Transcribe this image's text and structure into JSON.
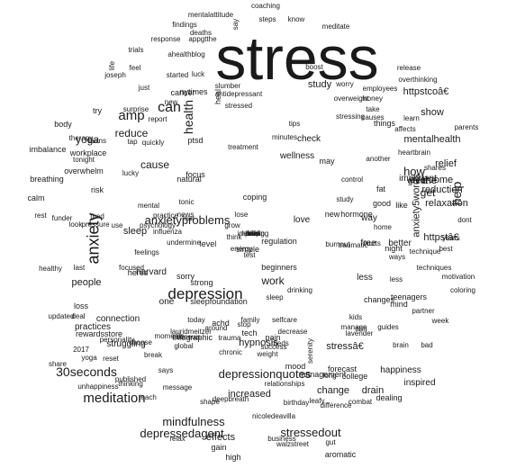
{
  "words": [
    "stress",
    "depression",
    "anxiety",
    "amp",
    "can",
    "meditation",
    "health",
    "help",
    "30seconds",
    "anxietyproblems",
    "mindfulness",
    "depressionquotes",
    "depressedagent",
    "stressedout",
    "how",
    "cause",
    "the",
    "get",
    "yoga",
    "reduce",
    "work",
    "sleep",
    "people",
    "mentalhealth",
    "relief",
    "anxiety5words",
    "effects",
    "increased",
    "change",
    "drain",
    "hypnosis",
    "stressâ€",
    "httpstcoâ€",
    "httpstâ€",
    "overcome",
    "reduction",
    "relaxation",
    "meditate",
    "coaching",
    "mentalattitude",
    "know",
    "say",
    "steps",
    "findings",
    "deaths",
    "response",
    "appgtthe",
    "trials",
    "ahealthblog",
    "feel",
    "life",
    "joseph",
    "just",
    "started",
    "luck",
    "slumber",
    "study",
    "worry",
    "nytimes",
    "cancer",
    "antidepressant",
    "overweight",
    "employees",
    "overthinking",
    "release",
    "heal",
    "surprise",
    "stressed",
    "report",
    "tips",
    "take",
    "learn",
    "show",
    "body",
    "therapy",
    "burns",
    "tap",
    "quickly",
    "ptsd",
    "minutes",
    "check",
    "things",
    "affects",
    "parents",
    "imbalance",
    "workplace",
    "wellness",
    "may",
    "another",
    "heartbrain",
    "breathing",
    "focus",
    "causes",
    "shares",
    "tonight",
    "overwhelm",
    "lucky",
    "natural",
    "control",
    "fat",
    "important",
    "great",
    "calm",
    "risk",
    "good",
    "like",
    "tonic",
    "coping",
    "home",
    "rest",
    "funder",
    "tired",
    "mental",
    "use",
    "fear",
    "lose",
    "love",
    "way",
    "better",
    "healthy",
    "harvard",
    "strong",
    "sorry",
    "level",
    "simple",
    "beginners",
    "less",
    "less",
    "heres",
    "new",
    "hormone",
    "free",
    "night",
    "ways",
    "best",
    "years",
    "dont",
    "regulation",
    "burnout",
    "traumatic",
    "energy",
    "think",
    "test",
    "last",
    "loss",
    "one",
    "sleepfoundation",
    "connection",
    "practices",
    "struggling",
    "moments",
    "infographic",
    "today",
    "deal",
    "trauma",
    "selfcare",
    "pain",
    "meds",
    "kids",
    "brain",
    "bad",
    "manage",
    "happiness",
    "inspired",
    "mood",
    "management",
    "college",
    "dealing",
    "gain",
    "high",
    "gut",
    "aromatic",
    "relax",
    "business",
    "walzstreet",
    "nicoledeavilla",
    "leafy",
    "birthday",
    "combat",
    "difference",
    "long",
    "guides",
    "mind",
    "changes",
    "teenagers",
    "partner",
    "coloring",
    "motivation",
    "techniques",
    "technique",
    "pressure",
    "look",
    "psychology",
    "undermine",
    "influenza",
    "practice",
    "news",
    "grow",
    "tech",
    "weight",
    "chronic",
    "success",
    "money",
    "serenity",
    "forecast",
    "yoga",
    "reset",
    "thinking",
    "published",
    "teach",
    "message",
    "shape",
    "deepbreath",
    "relationships",
    "share",
    "2017",
    "unhappiness",
    "rewardsstore",
    "personality",
    "choose",
    "global",
    "nbcnews",
    "lauridmeitzer",
    "around",
    "break",
    "updated",
    "lavender",
    "ahh",
    "achd",
    "stop",
    "decrease",
    "says",
    "focused",
    "feelings",
    "sleep",
    "drinking",
    "week",
    "boost",
    "try",
    "new",
    "family",
    "treatment",
    "study",
    "stressing",
    "hurts",
    "kills",
    "improving",
    "stop",
    "leaving",
    "hard",
    "drink"
  ]
}
